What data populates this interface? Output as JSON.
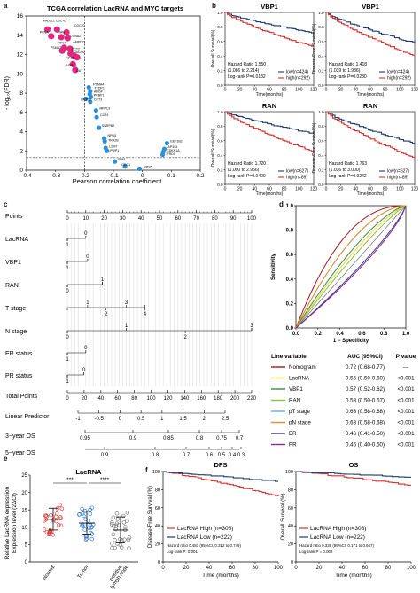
{
  "panel_letters": {
    "a": "a",
    "b": "b",
    "c": "c",
    "d": "d",
    "e": "e",
    "f": "f"
  },
  "panel_a": {
    "title": "TCGA correlation LacRNA and MYC targets",
    "ylabel": "- log₁₀(FDR)",
    "xlabel": "Pearson correlation coefficient",
    "colors": {
      "negative": "#e0287f",
      "positive": "#2f8fd8"
    },
    "chart_data": {
      "type": "scatter",
      "xlim": [
        -0.4,
        0.2
      ],
      "ylim": [
        0,
        16
      ],
      "xticks": [
        "-0.4",
        "-0.3",
        "-0.2",
        "-0.1",
        "0",
        "0.1",
        "0.2"
      ],
      "yticks": [
        "0",
        "2",
        "4",
        "6",
        "8",
        "10",
        "12",
        "14",
        "16"
      ],
      "points": [
        {
          "label": "MAD2L1",
          "x": -0.328,
          "y": 14.6
        },
        {
          "label": "CDC45",
          "x": -0.295,
          "y": 14.6
        },
        {
          "label": "CDC20",
          "x": -0.262,
          "y": 14.3
        },
        {
          "label": "PCNA",
          "x": -0.315,
          "y": 13.9
        },
        {
          "label": "RAN",
          "x": -0.28,
          "y": 13.8
        },
        {
          "label": "CCNA2",
          "x": -0.258,
          "y": 13.7
        },
        {
          "label": "RFC4",
          "x": -0.27,
          "y": 12.7
        },
        {
          "label": "AMPD2",
          "x": -0.25,
          "y": 12.6
        },
        {
          "label": "PSMA7",
          "x": -0.277,
          "y": 12.4
        },
        {
          "label": "CCT2",
          "x": -0.248,
          "y": 12.1
        },
        {
          "label": "MCM2",
          "x": -0.236,
          "y": 11.9
        },
        {
          "label": "CCT6",
          "x": -0.225,
          "y": 11.7
        },
        {
          "label": "VBP1",
          "x": -0.24,
          "y": 11.0
        },
        {
          "label": "DUT",
          "x": -0.232,
          "y": 10.4
        },
        {
          "label": "PSMA4",
          "x": -0.185,
          "y": 8.6
        },
        {
          "label": "TFDP1",
          "x": -0.18,
          "y": 8.2
        },
        {
          "label": "HDGF",
          "x": -0.182,
          "y": 7.9
        },
        {
          "label": "PCBP1",
          "x": -0.178,
          "y": 7.6
        },
        {
          "label": "RRP12",
          "x": -0.195,
          "y": 7.4
        },
        {
          "label": "CCT3",
          "x": -0.18,
          "y": 7.1
        },
        {
          "label": "MRPL9",
          "x": -0.16,
          "y": 6.2
        },
        {
          "label": "CCT4",
          "x": -0.158,
          "y": 5.5
        },
        {
          "label": "SNRPB2",
          "x": -0.15,
          "y": 4.4
        },
        {
          "label": "NPM1",
          "x": -0.132,
          "y": 3.3
        },
        {
          "label": "TRA2B",
          "x": -0.13,
          "y": 3.0
        },
        {
          "label": "LSM7",
          "x": -0.127,
          "y": 2.3
        },
        {
          "label": "PWP1",
          "x": -0.122,
          "y": 2.0
        },
        {
          "label": "EEF1B2",
          "x": 0.085,
          "y": 2.8
        },
        {
          "label": "AP3S1",
          "x": 0.076,
          "y": 2.2
        },
        {
          "label": "CDKN1A",
          "x": 0.072,
          "y": 1.9
        },
        {
          "label": "IFRD1",
          "x": 0.07,
          "y": 1.6
        },
        {
          "label": "SRM",
          "x": -0.095,
          "y": 0.9
        },
        {
          "label": "ODC1",
          "x": -0.06,
          "y": 0.4
        },
        {
          "label": "RPS5",
          "x": -0.01,
          "y": 0.15
        }
      ],
      "visible_labels": [
        "MAD2L1 CDC45",
        "CDC20",
        "PCNA",
        "RAN",
        "CCNA2",
        "RFC4",
        "AMPD2",
        "PSMA7",
        "CCT2",
        "MCM2",
        "CCT6",
        "VBP1",
        "DUT",
        "PSMA4",
        "TFDP1",
        "HDGF",
        "PCBP1",
        "RRP12",
        "CCT3",
        "MRPL9",
        "CCT4",
        "SNRPB2",
        "NPM1",
        "TRA2B",
        "LSM7",
        "PWP1",
        "EEF1B2",
        "AP3S1",
        "CDKN1A",
        "IFRD1",
        "SRM",
        "ODC1",
        "RPS5"
      ],
      "threshold_x": -0.2,
      "threshold_y": 1.3
    }
  },
  "panel_b": {
    "xlabel": "Time(months)",
    "xticks": [
      "0",
      "20",
      "40",
      "60",
      "80",
      "100",
      "120"
    ],
    "yticks": [
      "0.0",
      "0.2",
      "0.4",
      "0.6",
      "0.8",
      "1.0"
    ],
    "colors": {
      "low": "#1f3a6e",
      "high": "#d9302c"
    },
    "plots": [
      {
        "title": "VBP1",
        "ylabel": "Overall Survival(%)",
        "stats": [
          "Hazard Ratio 1.550",
          "(1.086 to 2.214)",
          "Log-rank P=0.0132"
        ],
        "legend": [
          "low(n=424)",
          "high(n=292)"
        ]
      },
      {
        "title": "VBP1",
        "ylabel": "Disease-Free Survival(%)",
        "stats": [
          "Hazard Ratio 1.418",
          "(1.039 to 1.936)",
          "Log-rank P=0.0280"
        ],
        "legend": [
          "low(n=424)",
          "high(n=292)"
        ]
      },
      {
        "title": "RAN",
        "ylabel": "Overall Survival(%)",
        "stats": [
          "Hazard Ratio 1.720",
          "(1.000 to 2.956)",
          "Log-rank P=0.0400"
        ],
        "legend": [
          "low(n=627)",
          "high(n=89)"
        ]
      },
      {
        "title": "RAN",
        "ylabel": "Disease-Free Survival(%)",
        "stats": [
          "Hazard Ratio 1.763",
          "(1.036 to 3.000)",
          "Log-rank P=0.0242"
        ],
        "legend": [
          "low(n=627)",
          "high(n=89)"
        ]
      }
    ]
  },
  "panel_c": {
    "rows": [
      {
        "label": "Points",
        "kind": "scale",
        "ticks": [
          "0",
          "10",
          "20",
          "30",
          "40",
          "50",
          "60",
          "70",
          "80",
          "90",
          "100"
        ]
      },
      {
        "label": "LacRNA",
        "kind": "var",
        "top": [
          "0"
        ],
        "bottom": [
          "1"
        ]
      },
      {
        "label": "VBP1",
        "kind": "var",
        "top": [
          "0"
        ],
        "bottom": [
          "1"
        ]
      },
      {
        "label": "RAN",
        "kind": "var",
        "top": [
          "1"
        ],
        "bottom": [
          "0"
        ]
      },
      {
        "label": "T stage",
        "kind": "var",
        "top": [
          "1",
          "3"
        ],
        "bottom": [
          "2",
          "4"
        ]
      },
      {
        "label": "N stage",
        "kind": "var",
        "top": [
          "1",
          "3"
        ],
        "bottom": [
          "0",
          "2"
        ]
      },
      {
        "label": "ER status",
        "kind": "var",
        "top": [
          "0"
        ],
        "bottom": [
          "1"
        ]
      },
      {
        "label": "PR status",
        "kind": "var",
        "top": [
          "0"
        ],
        "bottom": [
          "1"
        ]
      },
      {
        "label": "Total Points",
        "kind": "scale",
        "ticks": [
          "0",
          "20",
          "40",
          "60",
          "80",
          "100",
          "120",
          "140",
          "160",
          "180",
          "200",
          "220"
        ]
      },
      {
        "label": "Linear Predictor",
        "kind": "scale",
        "ticks": [
          "-1",
          "-0.5",
          "0",
          "0.5",
          "1",
          "1.5",
          "2",
          "2.5"
        ]
      },
      {
        "label": "3−year OS",
        "kind": "scale",
        "ticks": [
          "0.95",
          "0.9",
          "0.85",
          "0.8",
          "0.75",
          "0.7"
        ]
      },
      {
        "label": "5−year OS",
        "kind": "scale",
        "ticks": [
          "0.9",
          "0.8",
          "0.7",
          "0.6",
          "0.5",
          "0.4",
          "0.3"
        ]
      }
    ]
  },
  "panel_d": {
    "ylabel": "Sensitivity",
    "xlabel": "1 − Specificity",
    "ticks": [
      "0.0",
      "0.2",
      "0.4",
      "0.6",
      "0.8",
      "1.0"
    ],
    "table_header": [
      "Line variable",
      "AUC (95%CI)",
      "P  value"
    ],
    "rows": [
      {
        "name": "Nomogram",
        "auc": "0.72 (0.68-0.77)",
        "p": "---",
        "color": "#a4161a"
      },
      {
        "name": "LacRNA",
        "auc": "0.55 (0.50-0.60)",
        "p": "<0.001",
        "color": "#e8d44d"
      },
      {
        "name": "VBP1",
        "auc": "0.57 (0.52-0.62)",
        "p": "<0.001",
        "color": "#3b8c3b"
      },
      {
        "name": "RAN",
        "auc": "0.53 (0.50-0.57)",
        "p": "<0.001",
        "color": "#8fbf3a"
      },
      {
        "name": "pT stage",
        "auc": "0.63 (0.58-0.68)",
        "p": "<0.001",
        "color": "#5ab4d8"
      },
      {
        "name": "pN stage",
        "auc": "0.63 (0.58-0.68)",
        "p": "<0.001",
        "color": "#e88a2a"
      },
      {
        "name": "ER",
        "auc": "0.46 (0.41-0.50)",
        "p": "<0.001",
        "color": "#3a3a8c"
      },
      {
        "name": "PR",
        "auc": "0.45 (0.40-0.50)",
        "p": "<0.001",
        "color": "#8b2a8b"
      }
    ]
  },
  "panel_e": {
    "title": "LacRNA",
    "ylabel": "Relative LacRNA expression",
    "ylabel2": "Expression level (2ΔCt)",
    "yticks": [
      "0",
      "5",
      "10",
      "15",
      "20",
      "25"
    ],
    "chart_data": {
      "type": "scatter",
      "categories": [
        "Normal",
        "Tumor",
        "positive lymph node"
      ],
      "means": [
        12.3,
        11.2,
        9.2
      ],
      "sd_low": [
        9.2,
        7.8,
        5.5
      ],
      "sd_high": [
        15.5,
        14.6,
        13.0
      ],
      "ylim": [
        0,
        25
      ],
      "colors": [
        "#e04040",
        "#3b7fd4",
        "#7a7a7a"
      ]
    },
    "sig": [
      "***",
      "****"
    ]
  },
  "panel_f": {
    "xlabel": "Time (months)",
    "xticks": [
      "0",
      "20",
      "40",
      "60",
      "80",
      "100"
    ],
    "yticks": [
      "0",
      "20",
      "40",
      "60",
      "80",
      "100"
    ],
    "colors": {
      "high": "#d9302c",
      "low": "#1f3a6e"
    },
    "plots": [
      {
        "title": "DFS",
        "ylabel": "Disease-Free Survival (%)",
        "legend": [
          "LacRNA High (n=308)",
          "LacRNA Low (n=222)"
        ],
        "stats": [
          "Hazard ratio 0.483 (95%CI, 0.312 to 0.749)",
          "Log-rank P: 0.001"
        ]
      },
      {
        "title": "OS",
        "ylabel": "Overall Survival (%)",
        "legend": [
          "LacRNA High (n=308)",
          "LacRNA Low (n=222)"
        ],
        "stats": [
          "Hazard ratio 0.338 (95%CI, 0.171 to 0.667)",
          "Log-rank P = 0.002"
        ]
      }
    ]
  }
}
